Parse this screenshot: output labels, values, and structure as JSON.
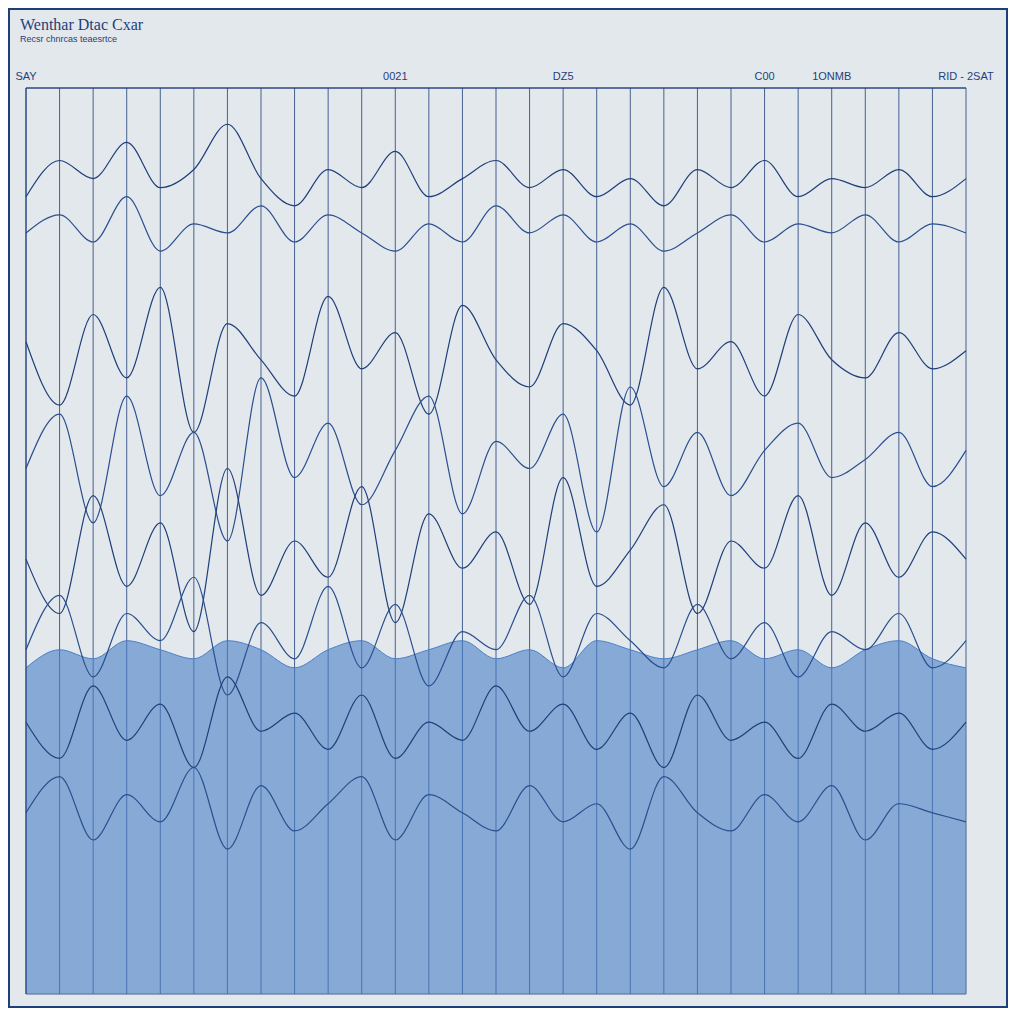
{
  "chart_data": {
    "type": "line",
    "title": "Wenthar Dtac Cxar",
    "subtitle": "Recsr chnrcas teaesrtce",
    "categories": [
      "SAY",
      null,
      null,
      null,
      null,
      null,
      null,
      null,
      null,
      null,
      null,
      "0021",
      null,
      null,
      null,
      null,
      "DZ5",
      null,
      null,
      null,
      null,
      null,
      "C00",
      null,
      "1ONMB",
      null,
      null,
      null,
      "RID - 2SAT"
    ],
    "ylim": [
      0,
      100
    ],
    "yticks": [
      0,
      10,
      20,
      30,
      40,
      50,
      60,
      70,
      80,
      90,
      100
    ],
    "grid": true,
    "tick_labels": "x",
    "series": [
      {
        "type": "area",
        "color": "#4a7fc8",
        "values": [
          36,
          38,
          37,
          39,
          38,
          37,
          39,
          38,
          36,
          38,
          39,
          37,
          38,
          39,
          37,
          38,
          36,
          39,
          38,
          37,
          38,
          39,
          37,
          38,
          36,
          38,
          39,
          37,
          36
        ]
      },
      {
        "type": "line",
        "color": "#1f3f7a",
        "values": [
          88,
          92,
          90,
          94,
          89,
          91,
          96,
          90,
          87,
          91,
          89,
          93,
          88,
          90,
          92,
          89,
          91,
          88,
          90,
          87,
          91,
          89,
          92,
          88,
          90,
          89,
          91,
          88,
          90
        ]
      },
      {
        "type": "line",
        "color": "#2a4f8f",
        "values": [
          84,
          86,
          83,
          88,
          82,
          85,
          84,
          87,
          83,
          86,
          84,
          82,
          85,
          83,
          87,
          84,
          86,
          83,
          85,
          82,
          84,
          86,
          83,
          85,
          84,
          86,
          83,
          85,
          84
        ]
      },
      {
        "type": "line",
        "color": "#1f3f7a",
        "values": [
          72,
          65,
          75,
          68,
          78,
          62,
          74,
          70,
          66,
          77,
          69,
          73,
          64,
          76,
          70,
          67,
          74,
          71,
          65,
          78,
          69,
          72,
          66,
          75,
          70,
          68,
          73,
          69,
          71
        ]
      },
      {
        "type": "line",
        "color": "#2a4f8f",
        "values": [
          58,
          64,
          52,
          66,
          55,
          62,
          50,
          68,
          57,
          63,
          54,
          60,
          66,
          53,
          61,
          58,
          64,
          51,
          67,
          56,
          62,
          55,
          60,
          63,
          57,
          59,
          62,
          56,
          60
        ]
      },
      {
        "type": "line",
        "color": "#1f3f7a",
        "values": [
          48,
          42,
          55,
          45,
          52,
          40,
          58,
          44,
          50,
          46,
          56,
          41,
          53,
          47,
          51,
          43,
          57,
          45,
          49,
          54,
          42,
          50,
          47,
          55,
          44,
          52,
          46,
          51,
          48
        ]
      },
      {
        "type": "line",
        "color": "#2a4f8f",
        "values": [
          38,
          44,
          35,
          42,
          39,
          46,
          33,
          41,
          37,
          45,
          36,
          43,
          34,
          40,
          38,
          44,
          35,
          42,
          39,
          36,
          43,
          37,
          41,
          35,
          40,
          38,
          42,
          36,
          39
        ]
      },
      {
        "type": "line",
        "color": "#1f3f7a",
        "values": [
          30,
          26,
          34,
          28,
          32,
          25,
          35,
          29,
          31,
          27,
          33,
          26,
          30,
          28,
          34,
          29,
          32,
          27,
          31,
          25,
          33,
          28,
          30,
          26,
          32,
          29,
          31,
          27,
          30
        ]
      },
      {
        "type": "line",
        "color": "#2a4f8f",
        "values": [
          20,
          24,
          17,
          22,
          19,
          25,
          16,
          23,
          18,
          21,
          24,
          17,
          22,
          20,
          18,
          23,
          19,
          21,
          16,
          24,
          20,
          18,
          22,
          19,
          23,
          17,
          21,
          20,
          19
        ]
      }
    ]
  }
}
